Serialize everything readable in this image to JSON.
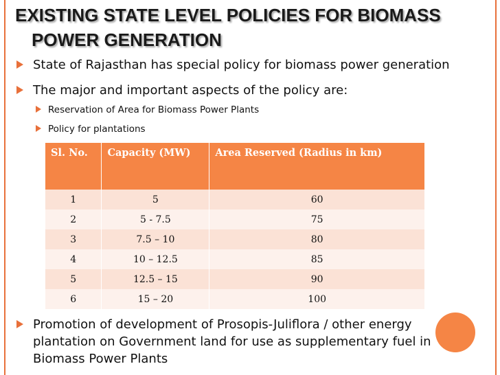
{
  "slide": {
    "title_line1": "EXISTING STATE LEVEL POLICIES FOR BIOMASS",
    "title_line2": "POWER GENERATION",
    "accent_color": "#e8703a",
    "bullets": [
      "State of Rajasthan has special policy for biomass power generation",
      "The major and important aspects of the policy are:"
    ],
    "sub_bullets": [
      "Reservation of Area for Biomass Power Plants",
      "Policy for plantations"
    ],
    "table": {
      "headers": [
        "Sl. No.",
        "Capacity (MW)",
        "Area Reserved  (Radius in km)"
      ],
      "rows": [
        [
          "1",
          "5",
          "60"
        ],
        [
          "2",
          "5 - 7.5",
          "75"
        ],
        [
          "3",
          "7.5 – 10",
          "80"
        ],
        [
          "4",
          "10 – 12.5",
          "85"
        ],
        [
          "5",
          "12.5 – 15",
          "90"
        ],
        [
          "6",
          "15 – 20",
          "100"
        ]
      ]
    },
    "last_bullet_lines": [
      "Promotion of development of Prosopis-Juliflora / other energy",
      "plantation on Government land for use as supplementary fuel in",
      "Biomass Power Plants"
    ]
  }
}
